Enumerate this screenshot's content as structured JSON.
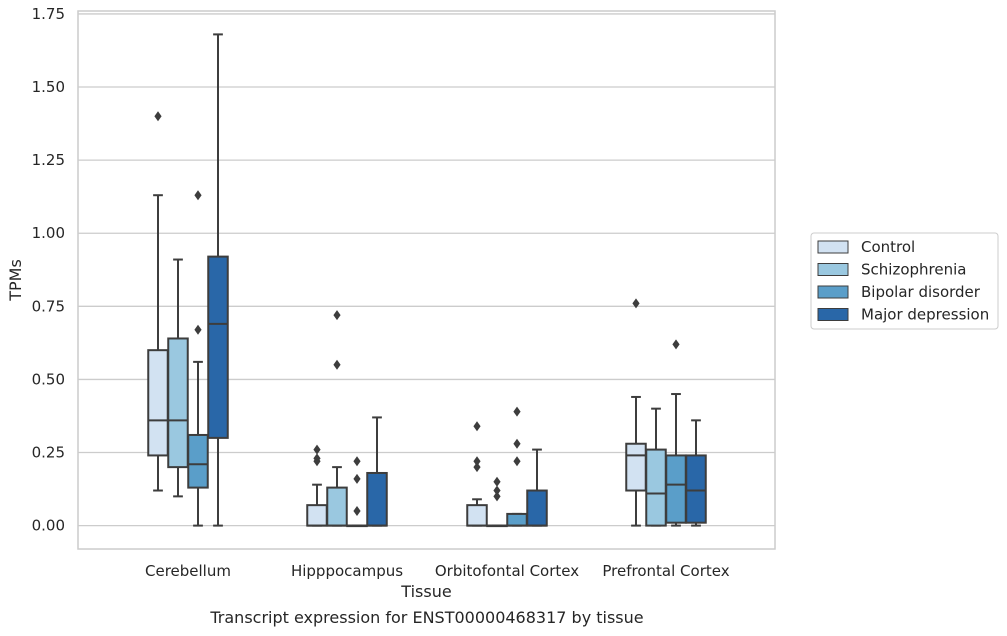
{
  "chart_data": {
    "type": "box",
    "title": "",
    "caption": "Transcript expression for ENST00000468317 by tissue",
    "xlabel": "Tissue",
    "ylabel": "TPMs",
    "ylim": [
      -0.08,
      1.76
    ],
    "yticks": [
      0.0,
      0.25,
      0.5,
      0.75,
      1.0,
      1.25,
      1.5,
      1.75
    ],
    "ytick_labels": [
      "0.00",
      "0.25",
      "0.50",
      "0.75",
      "1.00",
      "1.25",
      "1.50",
      "1.75"
    ],
    "grid": "horizontal",
    "legend_position": "right",
    "categories": [
      "Cerebellum",
      "Hipppocampus",
      "Orbitofontal Cortex",
      "Prefrontal Cortex"
    ],
    "series": [
      {
        "name": "Control",
        "color": "#d2e2f2",
        "boxes": [
          {
            "whislo": 0.12,
            "q1": 0.24,
            "med": 0.36,
            "q3": 0.6,
            "whishi": 1.13,
            "fliers": [
              1.4
            ]
          },
          {
            "whislo": 0.0,
            "q1": 0.0,
            "med": 0.0,
            "q3": 0.07,
            "whishi": 0.14,
            "fliers": [
              0.22,
              0.23,
              0.26
            ]
          },
          {
            "whislo": 0.0,
            "q1": 0.0,
            "med": 0.0,
            "q3": 0.07,
            "whishi": 0.09,
            "fliers": [
              0.2,
              0.22,
              0.34
            ]
          },
          {
            "whislo": 0.0,
            "q1": 0.12,
            "med": 0.24,
            "q3": 0.28,
            "whishi": 0.44,
            "fliers": [
              0.76
            ]
          }
        ]
      },
      {
        "name": "Schizophrenia",
        "color": "#9ac8e0",
        "boxes": [
          {
            "whislo": 0.1,
            "q1": 0.2,
            "med": 0.36,
            "q3": 0.64,
            "whishi": 0.91,
            "fliers": []
          },
          {
            "whislo": 0.0,
            "q1": 0.0,
            "med": 0.0,
            "q3": 0.13,
            "whishi": 0.2,
            "fliers": [
              0.55,
              0.72
            ]
          },
          {
            "whislo": 0.0,
            "q1": 0.0,
            "med": 0.0,
            "q3": 0.0,
            "whishi": 0.0,
            "fliers": [
              0.1,
              0.12,
              0.15
            ]
          },
          {
            "whislo": 0.0,
            "q1": 0.0,
            "med": 0.11,
            "q3": 0.26,
            "whishi": 0.4,
            "fliers": []
          }
        ]
      },
      {
        "name": "Bipolar disorder",
        "color": "#5a9ec9",
        "boxes": [
          {
            "whislo": 0.0,
            "q1": 0.13,
            "med": 0.21,
            "q3": 0.31,
            "whishi": 0.56,
            "fliers": [
              0.67,
              1.13
            ]
          },
          {
            "whislo": 0.0,
            "q1": 0.0,
            "med": 0.0,
            "q3": 0.0,
            "whishi": 0.0,
            "fliers": [
              0.05,
              0.16,
              0.22
            ]
          },
          {
            "whislo": 0.0,
            "q1": 0.0,
            "med": 0.0,
            "q3": 0.04,
            "whishi": 0.04,
            "fliers": [
              0.22,
              0.28,
              0.39
            ]
          },
          {
            "whislo": 0.0,
            "q1": 0.01,
            "med": 0.14,
            "q3": 0.24,
            "whishi": 0.45,
            "fliers": [
              0.62
            ]
          }
        ]
      },
      {
        "name": "Major depression",
        "color": "#2967a8",
        "boxes": [
          {
            "whislo": 0.0,
            "q1": 0.3,
            "med": 0.69,
            "q3": 0.92,
            "whishi": 1.68,
            "fliers": []
          },
          {
            "whislo": 0.0,
            "q1": 0.0,
            "med": 0.0,
            "q3": 0.18,
            "whishi": 0.37,
            "fliers": []
          },
          {
            "whislo": 0.0,
            "q1": 0.0,
            "med": 0.0,
            "q3": 0.12,
            "whishi": 0.26,
            "fliers": []
          },
          {
            "whislo": 0.0,
            "q1": 0.01,
            "med": 0.12,
            "q3": 0.24,
            "whishi": 0.36,
            "fliers": []
          }
        ]
      }
    ]
  }
}
